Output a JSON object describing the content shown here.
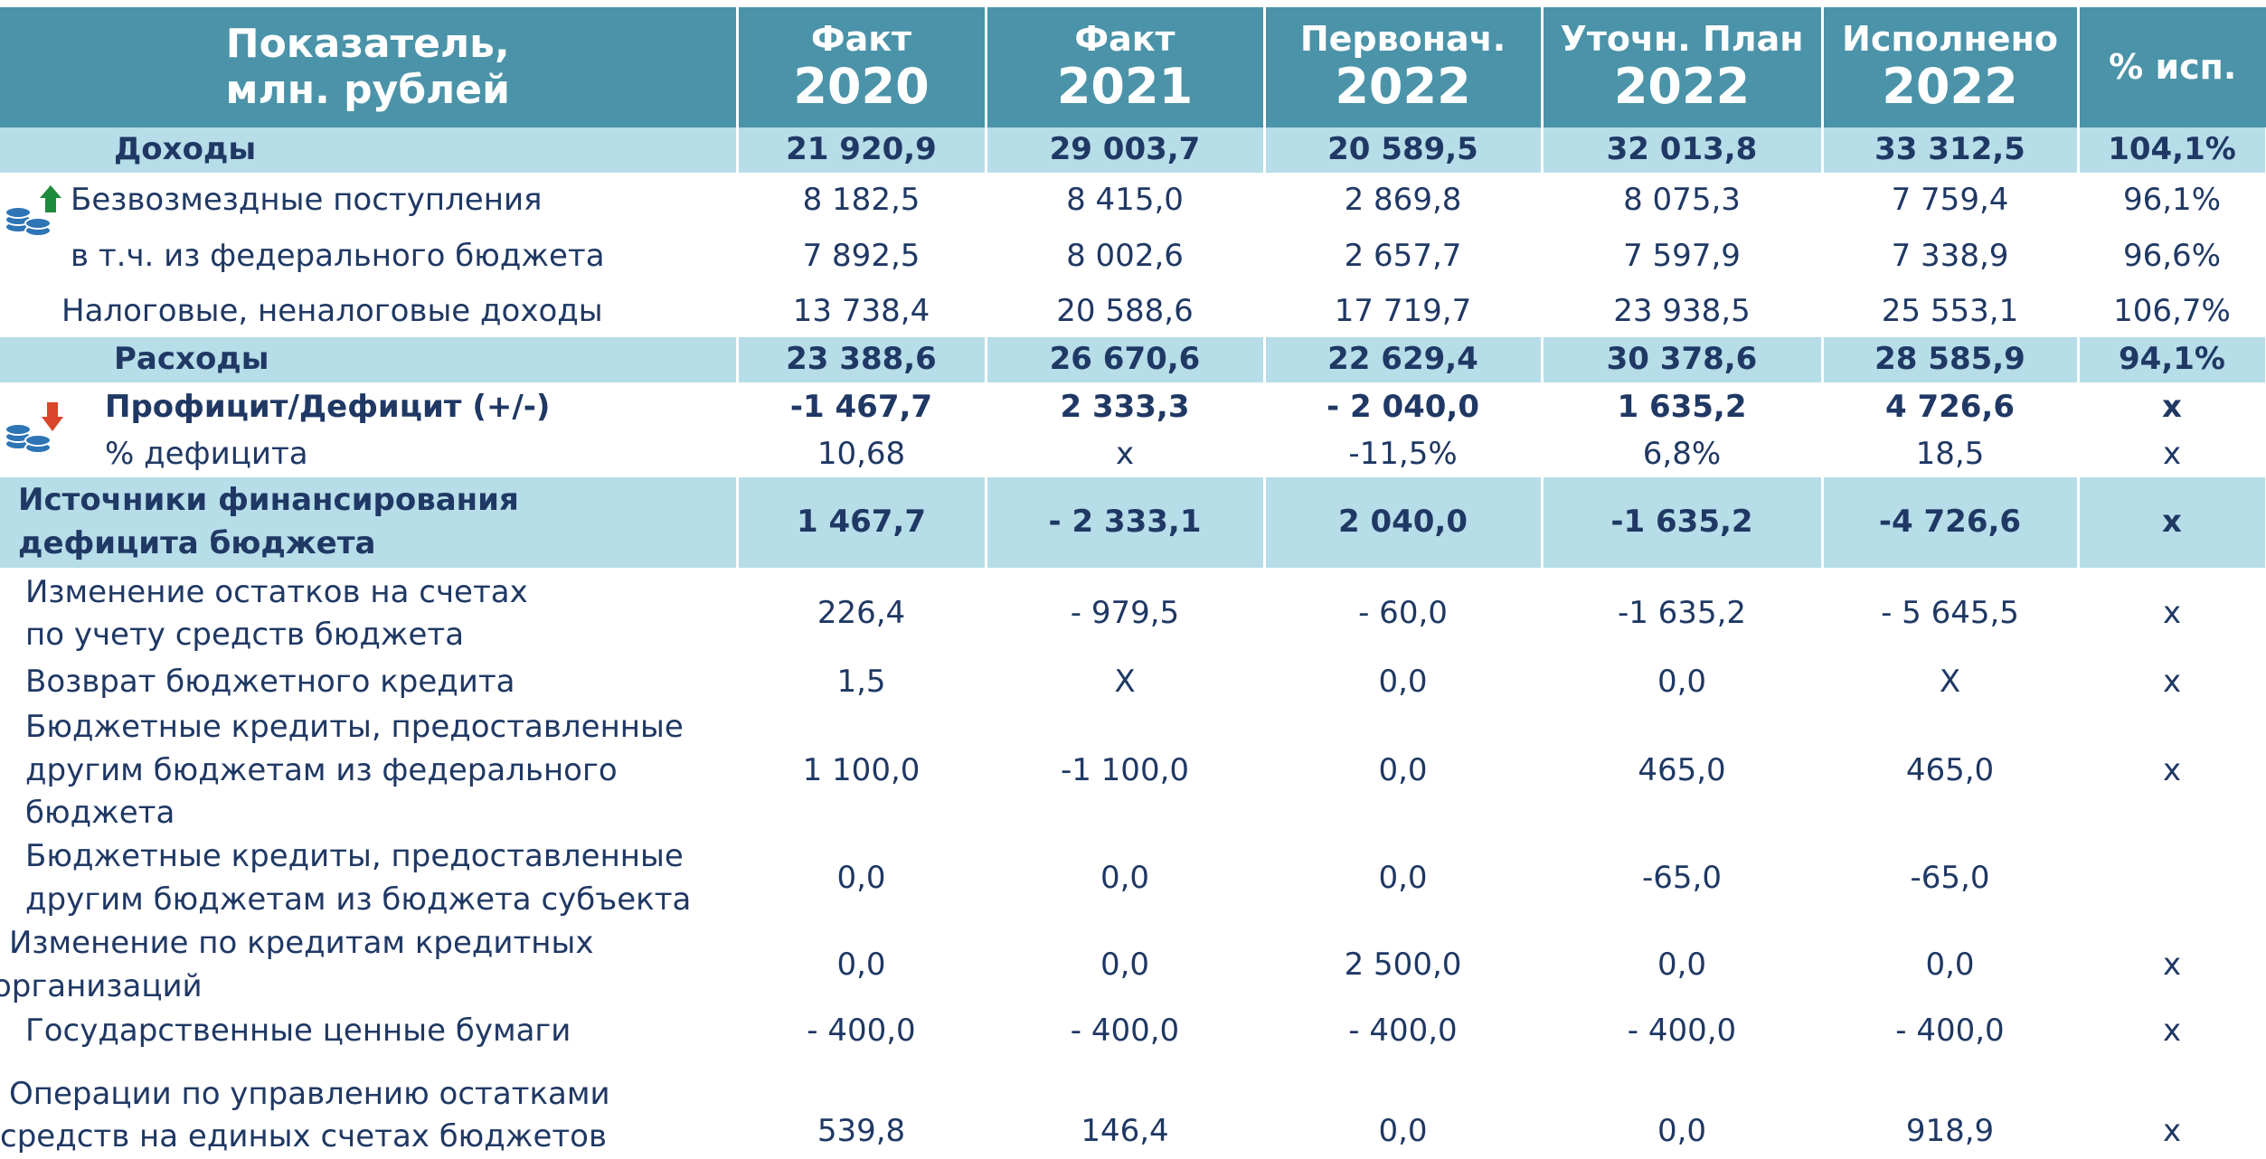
{
  "header": [
    {
      "line1": "Показатель,",
      "line2": "млн. рублей"
    },
    {
      "line1": "Факт",
      "line2": "2020"
    },
    {
      "line1": "Факт",
      "line2": "2021"
    },
    {
      "line1": "Первонач.",
      "line2": "2022"
    },
    {
      "line1": "Уточн. План",
      "line2": "2022"
    },
    {
      "line1": "Исполнено",
      "line2": "2022"
    },
    {
      "line1": "% исп."
    }
  ],
  "rows": [
    {
      "style": "band",
      "label": [
        "Доходы"
      ],
      "values": [
        "21 920,9",
        "29 003,7",
        "20 589,5",
        "32 013,8",
        "33 312,5",
        "104,1%"
      ]
    },
    {
      "label": [
        "Безвозмездные  поступления"
      ],
      "values": [
        "8 182,5",
        "8 415,0",
        "2 869,8",
        "8 075,3",
        "7 759,4",
        "96,1%"
      ]
    },
    {
      "label": [
        "в т.ч. из федерального бюджета"
      ],
      "values": [
        "7 892,5",
        "8 002,6",
        "2 657,7",
        "7 597,9",
        "7 338,9",
        "96,6%"
      ]
    },
    {
      "label": [
        "Налоговые, неналоговые доходы"
      ],
      "values": [
        "13 738,4",
        "20 588,6",
        "17 719,7",
        "23 938,5",
        "25 553,1",
        "106,7%"
      ]
    },
    {
      "style": "band",
      "label": [
        "Расходы"
      ],
      "values": [
        "23 388,6",
        "26 670,6",
        "22 629,4",
        "30 378,6",
        "28 585,9",
        "94,1%"
      ]
    },
    {
      "style": "bold",
      "label": [
        "Профицит/Дефицит (+/-)"
      ],
      "values": [
        "-1 467,7",
        "2 333,3",
        "- 2 040,0",
        "1 635,2",
        "4 726,6",
        "x"
      ]
    },
    {
      "label": [
        "% дефицита"
      ],
      "values": [
        "10,68",
        "x",
        "-11,5%",
        "6,8%",
        "18,5",
        "x"
      ]
    },
    {
      "style": "band",
      "label": [
        "Источники финансирования",
        "дефицита бюджета"
      ],
      "values": [
        "1 467,7",
        "- 2 333,1",
        "2 040,0",
        "-1 635,2",
        "-4 726,6",
        "x"
      ]
    },
    {
      "label": [
        "Изменение остатков на счетах",
        "по учету средств бюджета"
      ],
      "values": [
        "226,4",
        "- 979,5",
        "- 60,0",
        "-1 635,2",
        "- 5 645,5",
        "x"
      ]
    },
    {
      "label": [
        "Возврат бюджетного кредита"
      ],
      "values": [
        "1,5",
        "X",
        "0,0",
        "0,0",
        "X",
        "x"
      ]
    },
    {
      "label": [
        "Бюджетные кредиты, предоставленные",
        "другим бюджетам из федерального бюджета"
      ],
      "values": [
        "1 100,0",
        "-1 100,0",
        "0,0",
        "465,0",
        "465,0",
        "x"
      ]
    },
    {
      "label": [
        "Бюджетные кредиты, предоставленные",
        "другим бюджетам из бюджета субъекта"
      ],
      "values": [
        "0,0",
        "0,0",
        "0,0",
        "-65,0",
        "-65,0",
        null
      ]
    },
    {
      "label": [
        "Изменение по кредитам кредитных",
        "организаций"
      ],
      "values": [
        "0,0",
        "0,0",
        "2 500,0",
        "0,0",
        "0,0",
        "x"
      ]
    },
    {
      "label": [
        "Государственные ценные бумаги"
      ],
      "values": [
        "- 400,0",
        "- 400,0",
        "- 400,0",
        "- 400,0",
        "- 400,0",
        "x"
      ]
    },
    {
      "label": [
        "Операции по управлению остатками",
        "средств на единых счетах бюджетов"
      ],
      "values": [
        "539,8",
        "146,4",
        "0,0",
        "0,0",
        "918,9",
        "x"
      ]
    }
  ]
}
